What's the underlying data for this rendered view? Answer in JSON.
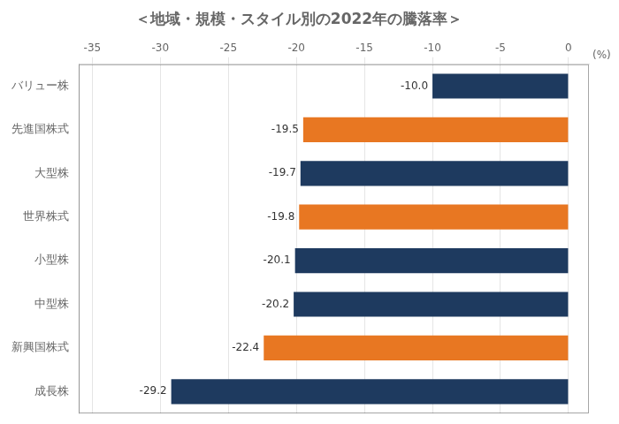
{
  "chart_data": {
    "type": "bar",
    "orientation": "horizontal",
    "title": "＜地域・規模・スタイル別の2022年の騰落率＞",
    "categories": [
      "成長株",
      "新興国株式",
      "中型株",
      "小型株",
      "世界株式",
      "大型株",
      "先進国株式",
      "バリュー株"
    ],
    "values": [
      -29.2,
      -22.4,
      -20.2,
      -20.1,
      -19.8,
      -19.7,
      -19.5,
      -10.0
    ],
    "value_labels": [
      "-29.2",
      "-22.4",
      "-20.2",
      "-20.1",
      "-19.8",
      "-19.7",
      "-19.5",
      "-10.0"
    ],
    "colors": [
      "#1e3a5f",
      "#e87722",
      "#1e3a5f",
      "#1e3a5f",
      "#e87722",
      "#1e3a5f",
      "#e87722",
      "#1e3a5f"
    ],
    "xlim": [
      -36,
      1.5
    ],
    "xticks": [
      -35,
      -30,
      -25,
      -20,
      -15,
      -10,
      -5,
      0
    ],
    "grid": true,
    "data_labels": true,
    "annotations": [
      "(%)"
    ]
  }
}
